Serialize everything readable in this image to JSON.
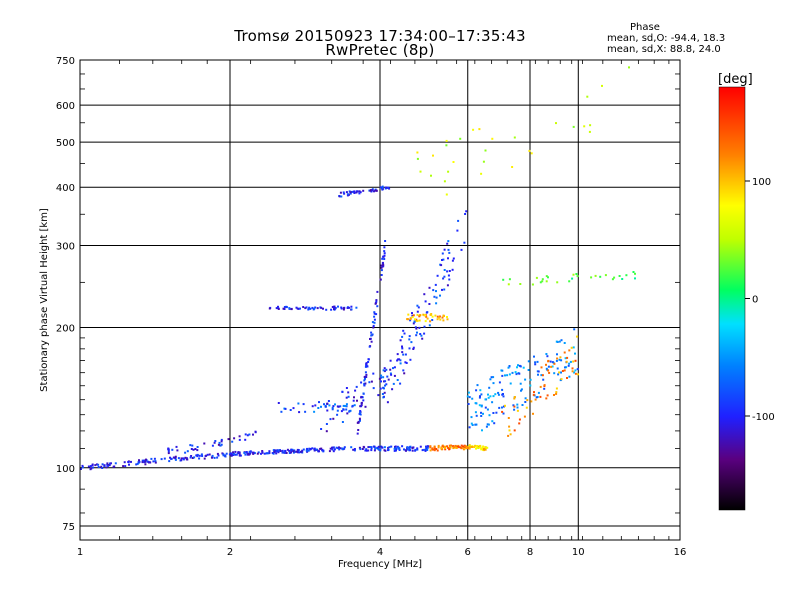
{
  "header": {
    "title_line1": "Tromsø 20150923 17:34:00–17:35:43",
    "title_line2": "RwPretec (8p)",
    "phase_heading": "Phase",
    "phase_o": "mean, sd,O: -94.4, 18.3",
    "phase_x": "mean, sd,X:  88.8, 24.0"
  },
  "chart_data": {
    "type": "scatter",
    "xlabel": "Frequency [MHz]",
    "ylabel": "Stationary phase Virtual Height [km]",
    "xscale": "log",
    "yscale": "log",
    "xlim": [
      1,
      16
    ],
    "ylim": [
      70,
      750
    ],
    "x_ticks": [
      1,
      2,
      4,
      6,
      8,
      10,
      16
    ],
    "y_ticks": [
      75,
      100,
      200,
      300,
      400,
      500,
      600,
      750
    ],
    "grid": true,
    "colorbar": {
      "label": "[deg]",
      "range": [
        -180,
        180
      ],
      "ticks": [
        100,
        0,
        -100
      ]
    },
    "trace_groups": [
      {
        "x_start": 1.0,
        "x_end": 2.0,
        "y_start": 100,
        "y_end": 107,
        "count": 120,
        "phase": -100,
        "jitter": 0.012
      },
      {
        "x_start": 2.0,
        "x_end": 3.5,
        "y_start": 107,
        "y_end": 110,
        "count": 140,
        "phase": -100,
        "jitter": 0.01
      },
      {
        "x_start": 3.5,
        "x_end": 5.0,
        "y_start": 110,
        "y_end": 110,
        "count": 90,
        "phase": -95,
        "jitter": 0.012
      },
      {
        "x_start": 5.0,
        "x_end": 6.0,
        "y_start": 110,
        "y_end": 111,
        "count": 60,
        "phase": 130,
        "jitter": 0.012
      },
      {
        "x_start": 6.0,
        "x_end": 6.6,
        "y_start": 111,
        "y_end": 110,
        "count": 40,
        "phase": 90,
        "jitter": 0.01
      },
      {
        "x_start": 1.5,
        "x_end": 2.3,
        "y_start": 108,
        "y_end": 118,
        "count": 40,
        "phase": -100,
        "jitter": 0.02
      },
      {
        "x_start": 2.5,
        "x_end": 3.6,
        "y_start": 135,
        "y_end": 135,
        "count": 40,
        "phase": -80,
        "jitter": 0.025
      },
      {
        "x_start": 2.4,
        "x_end": 3.6,
        "y_start": 220,
        "y_end": 220,
        "count": 60,
        "phase": -100,
        "jitter": 0.008
      },
      {
        "x_start": 3.3,
        "x_end": 4.2,
        "y_start": 385,
        "y_end": 400,
        "count": 50,
        "phase": -100,
        "jitter": 0.01
      },
      {
        "x_start": 3.6,
        "x_end": 4.1,
        "y_start": 120,
        "y_end": 300,
        "count": 90,
        "phase": -100,
        "jitter": 0.04
      },
      {
        "x_start": 4.0,
        "x_end": 6.0,
        "y_start": 140,
        "y_end": 330,
        "count": 110,
        "phase": -90,
        "jitter": 0.12
      },
      {
        "x_start": 4.5,
        "x_end": 5.5,
        "y_start": 210,
        "y_end": 210,
        "count": 40,
        "phase": 110,
        "jitter": 0.02
      },
      {
        "x_start": 6.0,
        "x_end": 10.0,
        "y_start": 130,
        "y_end": 180,
        "count": 150,
        "phase": -60,
        "jitter": 0.12
      },
      {
        "x_start": 7.0,
        "x_end": 10.0,
        "y_start": 125,
        "y_end": 175,
        "count": 60,
        "phase": 120,
        "jitter": 0.1
      },
      {
        "x_start": 3.0,
        "x_end": 4.5,
        "y_start": 125,
        "y_end": 165,
        "count": 50,
        "phase": -100,
        "jitter": 0.08
      },
      {
        "x_start": 7.0,
        "x_end": 13.0,
        "y_start": 250,
        "y_end": 260,
        "count": 30,
        "phase": 20,
        "jitter": 0.02
      },
      {
        "x_start": 4.5,
        "x_end": 13.0,
        "y_start": 400,
        "y_end": 650,
        "count": 30,
        "phase": 60,
        "jitter": 0.15
      }
    ]
  }
}
